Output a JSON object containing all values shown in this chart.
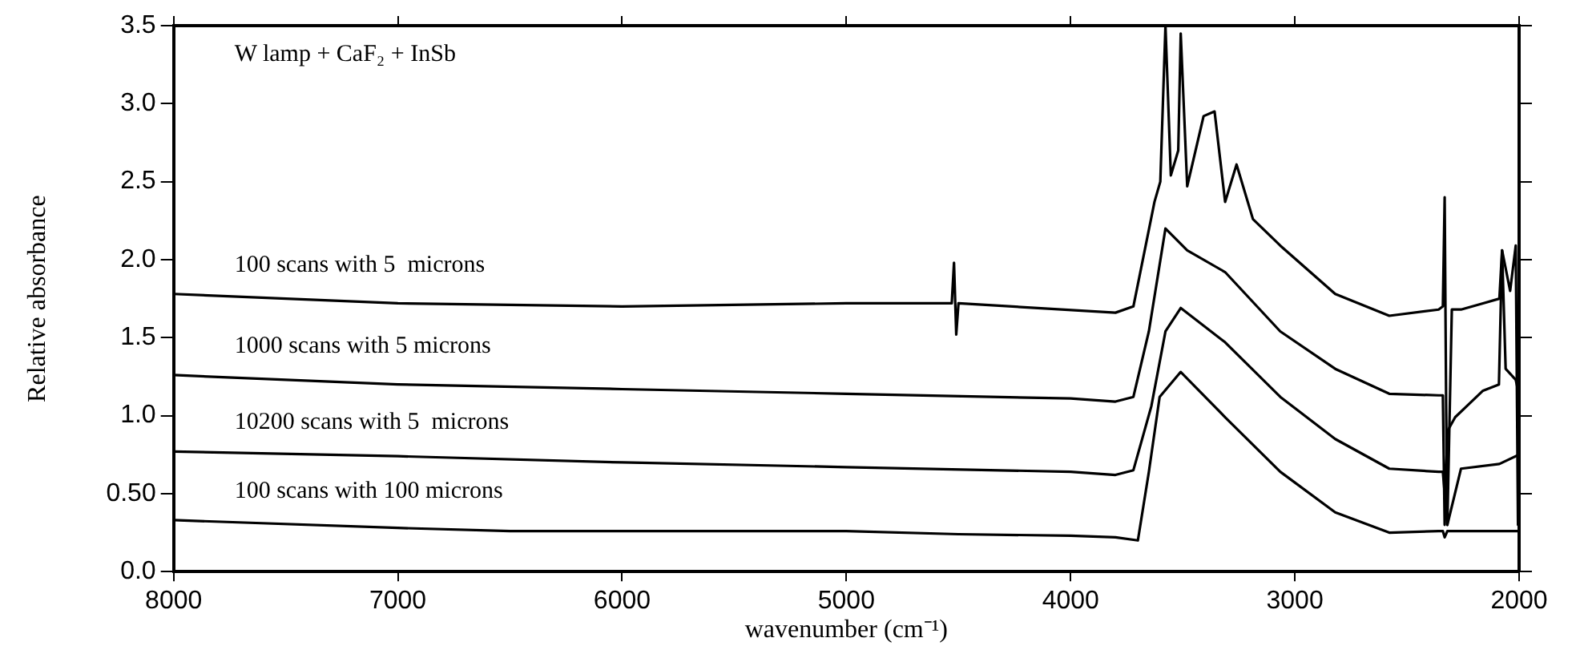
{
  "chart_data": {
    "type": "line",
    "xlabel": "wavenumber (cm⁻¹)",
    "ylabel": "Relative absorbance",
    "annotations": [
      "W lamp + CaF₂ + InSb"
    ],
    "xlim": [
      8000,
      2000
    ],
    "xticks": [
      8000,
      7000,
      6000,
      5000,
      4000,
      3000,
      2000
    ],
    "ylim": [
      0,
      3.5
    ],
    "yticks": [
      {
        "value": 0,
        "label": "0.0"
      },
      {
        "value": 0.5,
        "label": "0.50"
      },
      {
        "value": 1,
        "label": "1.0"
      },
      {
        "value": 1.5,
        "label": "1.5"
      },
      {
        "value": 2,
        "label": "2.0"
      },
      {
        "value": 2.5,
        "label": "2.5"
      },
      {
        "value": 3,
        "label": "3.0"
      },
      {
        "value": 3.5,
        "label": "3.5"
      }
    ],
    "grid": false,
    "legend": false,
    "marker": "none",
    "line_style": "solid",
    "series": [
      {
        "name": "100 scans with 5  microns",
        "color": "#000000",
        "x": [
          8000,
          7000,
          6000,
          5000,
          4530,
          4520,
          4510,
          4500,
          3800,
          3720,
          3626,
          3600,
          3577,
          3553,
          3520,
          3509,
          3480,
          3407,
          3358,
          3311,
          3260,
          3187,
          3065,
          2820,
          2579,
          2359,
          2340,
          2332,
          2325,
          2320,
          2300,
          2259,
          2161,
          2088,
          2076,
          2040,
          2015,
          2005,
          2000
        ],
        "values": [
          1.78,
          1.72,
          1.7,
          1.72,
          1.72,
          1.98,
          1.52,
          1.72,
          1.66,
          1.7,
          2.37,
          2.5,
          3.5,
          2.54,
          2.7,
          3.45,
          2.47,
          2.92,
          2.95,
          2.37,
          2.61,
          2.26,
          2.09,
          1.78,
          1.64,
          1.68,
          1.7,
          2.4,
          1.0,
          0.3,
          1.68,
          1.68,
          1.72,
          1.75,
          2.06,
          1.8,
          2.09,
          0.3,
          1.68
        ]
      },
      {
        "name": "1000 scans with 5 microns",
        "color": "#000000",
        "x": [
          8000,
          7000,
          6000,
          5000,
          4000,
          3800,
          3720,
          3651,
          3577,
          3480,
          3311,
          3065,
          2820,
          2579,
          2359,
          2340,
          2332,
          2320,
          2285,
          2161,
          2090,
          2076,
          2060,
          2015,
          2000
        ],
        "values": [
          1.26,
          1.2,
          1.17,
          1.14,
          1.11,
          1.09,
          1.12,
          1.54,
          2.2,
          2.06,
          1.92,
          1.54,
          1.3,
          1.14,
          1.13,
          1.13,
          0.3,
          0.9,
          0.99,
          1.16,
          1.2,
          2.06,
          1.3,
          1.23,
          1.13
        ]
      },
      {
        "name": "10200 scans with 5  microns",
        "color": "#000000",
        "x": [
          8000,
          7000,
          6000,
          5000,
          4000,
          3800,
          3720,
          3640,
          3577,
          3509,
          3311,
          3065,
          2820,
          2579,
          2359,
          2340,
          2320,
          2259,
          2088,
          2000
        ],
        "values": [
          0.77,
          0.74,
          0.7,
          0.67,
          0.64,
          0.62,
          0.65,
          1.06,
          1.54,
          1.69,
          1.47,
          1.12,
          0.85,
          0.66,
          0.64,
          0.64,
          0.3,
          0.66,
          0.69,
          0.75
        ]
      },
      {
        "name": "100 scans with 100 microns",
        "color": "#000000",
        "x": [
          8000,
          7000,
          6500,
          6000,
          5000,
          4500,
          4000,
          3800,
          3700,
          3651,
          3603,
          3509,
          3311,
          3065,
          2820,
          2579,
          2359,
          2340,
          2332,
          2320,
          2285,
          2000
        ],
        "values": [
          0.33,
          0.28,
          0.26,
          0.26,
          0.26,
          0.24,
          0.23,
          0.22,
          0.2,
          0.64,
          1.12,
          1.28,
          0.99,
          0.64,
          0.38,
          0.25,
          0.26,
          0.26,
          0.22,
          0.26,
          0.26,
          0.26
        ]
      }
    ]
  }
}
